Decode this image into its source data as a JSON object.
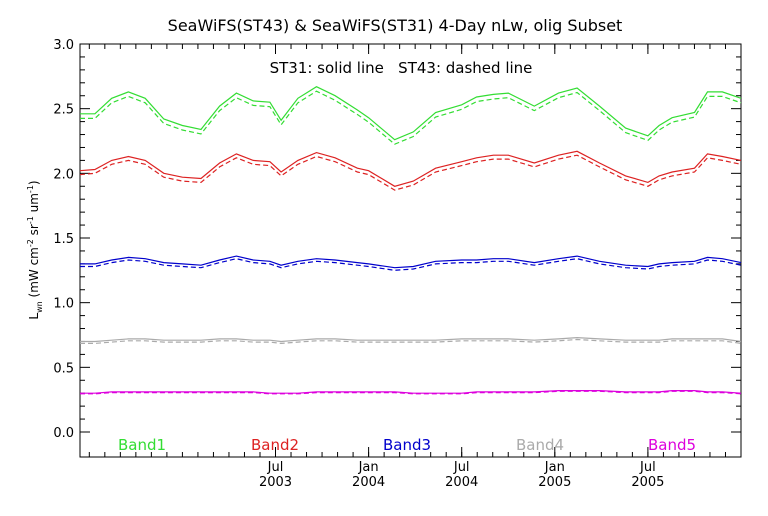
{
  "chart_data": {
    "type": "line",
    "title": "SeaWiFS(ST43) & SeaWiFS(ST31) 4-Day nLw, olig Subset",
    "annotation": "ST31: solid line   ST43: dashed line",
    "ylabel": {
      "main": "L",
      "sub": "wn",
      "units_open": " (mW cm",
      "sup1": "-2",
      "mid": " sr",
      "sup2": "-1",
      "mid2": " um",
      "sup3": "-1",
      "units_close": ")"
    },
    "xlabel": "",
    "ylim": [
      0.0,
      3.0
    ],
    "xlim": [
      2002.45,
      2006.0
    ],
    "yticks": [
      {
        "value": 0.0,
        "label": "0.0"
      },
      {
        "value": 0.5,
        "label": "0.5"
      },
      {
        "value": 1.0,
        "label": "1.0"
      },
      {
        "value": 1.5,
        "label": "1.5"
      },
      {
        "value": 2.0,
        "label": "2.0"
      },
      {
        "value": 2.5,
        "label": "2.5"
      },
      {
        "value": 3.0,
        "label": "3.0"
      }
    ],
    "xticks": [
      {
        "value": 2003.5,
        "month": "Jul",
        "year": "2003"
      },
      {
        "value": 2004.0,
        "month": "Jan",
        "year": "2004"
      },
      {
        "value": 2004.5,
        "month": "Jul",
        "year": "2004"
      },
      {
        "value": 2005.0,
        "month": "Jan",
        "year": "2005"
      },
      {
        "value": 2005.5,
        "month": "Jul",
        "year": "2005"
      }
    ],
    "grid": false,
    "legend": "bottom",
    "x": [
      2002.45,
      2002.53,
      2002.62,
      2002.71,
      2002.8,
      2002.9,
      2003.0,
      2003.1,
      2003.2,
      2003.29,
      2003.38,
      2003.47,
      2003.53,
      2003.62,
      2003.72,
      2003.82,
      2003.94,
      2004.0,
      2004.14,
      2004.24,
      2004.36,
      2004.5,
      2004.58,
      2004.67,
      2004.75,
      2004.89,
      2005.02,
      2005.12,
      2005.24,
      2005.38,
      2005.5,
      2005.56,
      2005.63,
      2005.75,
      2005.82,
      2005.9,
      2006.0
    ],
    "series": [
      {
        "name": "Band1",
        "color": "#33dd33",
        "values": [
          2.46,
          2.46,
          2.58,
          2.63,
          2.58,
          2.42,
          2.37,
          2.34,
          2.52,
          2.62,
          2.56,
          2.55,
          2.41,
          2.58,
          2.67,
          2.6,
          2.49,
          2.43,
          2.26,
          2.32,
          2.47,
          2.53,
          2.59,
          2.61,
          2.62,
          2.52,
          2.62,
          2.66,
          2.52,
          2.35,
          2.29,
          2.37,
          2.43,
          2.47,
          2.63,
          2.63,
          2.58
        ]
      },
      {
        "name": "Band2",
        "color": "#dd2222",
        "values": [
          2.02,
          2.03,
          2.1,
          2.13,
          2.1,
          2.0,
          1.97,
          1.96,
          2.08,
          2.15,
          2.1,
          2.09,
          2.01,
          2.1,
          2.16,
          2.12,
          2.04,
          2.02,
          1.9,
          1.94,
          2.04,
          2.09,
          2.12,
          2.14,
          2.14,
          2.08,
          2.14,
          2.17,
          2.08,
          1.98,
          1.93,
          1.98,
          2.01,
          2.04,
          2.15,
          2.13,
          2.1
        ]
      },
      {
        "name": "Band3",
        "color": "#0000cc",
        "values": [
          1.3,
          1.3,
          1.33,
          1.35,
          1.34,
          1.31,
          1.3,
          1.29,
          1.33,
          1.36,
          1.33,
          1.32,
          1.29,
          1.32,
          1.34,
          1.33,
          1.31,
          1.3,
          1.27,
          1.28,
          1.32,
          1.33,
          1.33,
          1.34,
          1.34,
          1.31,
          1.34,
          1.36,
          1.32,
          1.29,
          1.28,
          1.3,
          1.31,
          1.32,
          1.35,
          1.34,
          1.31
        ]
      },
      {
        "name": "Band4",
        "color": "#aaaaaa",
        "values": [
          0.7,
          0.7,
          0.71,
          0.72,
          0.72,
          0.71,
          0.71,
          0.71,
          0.72,
          0.72,
          0.71,
          0.71,
          0.7,
          0.71,
          0.72,
          0.72,
          0.71,
          0.71,
          0.71,
          0.71,
          0.71,
          0.72,
          0.72,
          0.72,
          0.72,
          0.71,
          0.72,
          0.73,
          0.72,
          0.71,
          0.71,
          0.71,
          0.72,
          0.72,
          0.72,
          0.72,
          0.7
        ]
      },
      {
        "name": "Band5",
        "color": "#dd00dd",
        "values": [
          0.3,
          0.3,
          0.31,
          0.31,
          0.31,
          0.31,
          0.31,
          0.31,
          0.31,
          0.31,
          0.31,
          0.3,
          0.3,
          0.3,
          0.31,
          0.31,
          0.31,
          0.31,
          0.31,
          0.3,
          0.3,
          0.3,
          0.31,
          0.31,
          0.31,
          0.31,
          0.32,
          0.32,
          0.32,
          0.31,
          0.31,
          0.31,
          0.32,
          0.32,
          0.31,
          0.31,
          0.3
        ]
      }
    ],
    "dashed_offset": [
      -0.035,
      -0.03,
      -0.02,
      -0.015,
      -0.005
    ]
  }
}
